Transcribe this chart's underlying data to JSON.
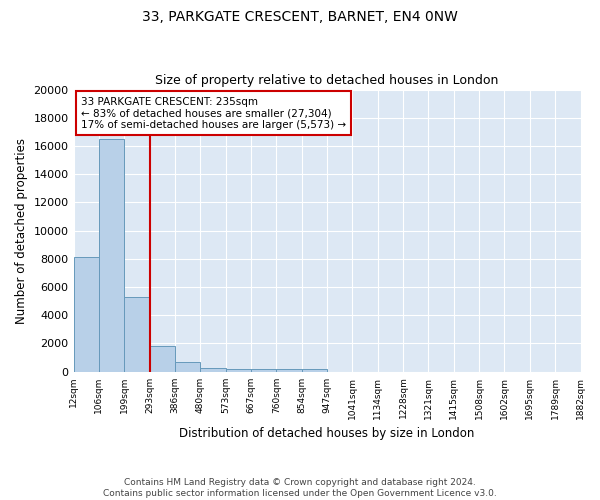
{
  "title": "33, PARKGATE CRESCENT, BARNET, EN4 0NW",
  "subtitle": "Size of property relative to detached houses in London",
  "xlabel": "Distribution of detached houses by size in London",
  "ylabel": "Number of detached properties",
  "footer1": "Contains HM Land Registry data © Crown copyright and database right 2024.",
  "footer2": "Contains public sector information licensed under the Open Government Licence v3.0.",
  "bin_labels": [
    "12sqm",
    "106sqm",
    "199sqm",
    "293sqm",
    "386sqm",
    "480sqm",
    "573sqm",
    "667sqm",
    "760sqm",
    "854sqm",
    "947sqm",
    "1041sqm",
    "1134sqm",
    "1228sqm",
    "1321sqm",
    "1415sqm",
    "1508sqm",
    "1602sqm",
    "1695sqm",
    "1789sqm",
    "1882sqm"
  ],
  "bar_values": [
    8100,
    16500,
    5300,
    1850,
    700,
    280,
    210,
    200,
    175,
    160,
    0,
    0,
    0,
    0,
    0,
    0,
    0,
    0,
    0,
    0
  ],
  "bar_color": "#b8d0e8",
  "bar_edge_color": "#6699bb",
  "bg_color": "#dde8f4",
  "red_line_color": "#cc0000",
  "annotation_text": "33 PARKGATE CRESCENT: 235sqm\n← 83% of detached houses are smaller (27,304)\n17% of semi-detached houses are larger (5,573) →",
  "annotation_box_color": "#cc0000",
  "ylim": [
    0,
    20000
  ],
  "yticks": [
    0,
    2000,
    4000,
    6000,
    8000,
    10000,
    12000,
    14000,
    16000,
    18000,
    20000
  ],
  "ytick_labels": [
    "0",
    "2000",
    "4000",
    "6000",
    "8000",
    "10000",
    "12000",
    "14000",
    "16000",
    "18000",
    "20000"
  ]
}
